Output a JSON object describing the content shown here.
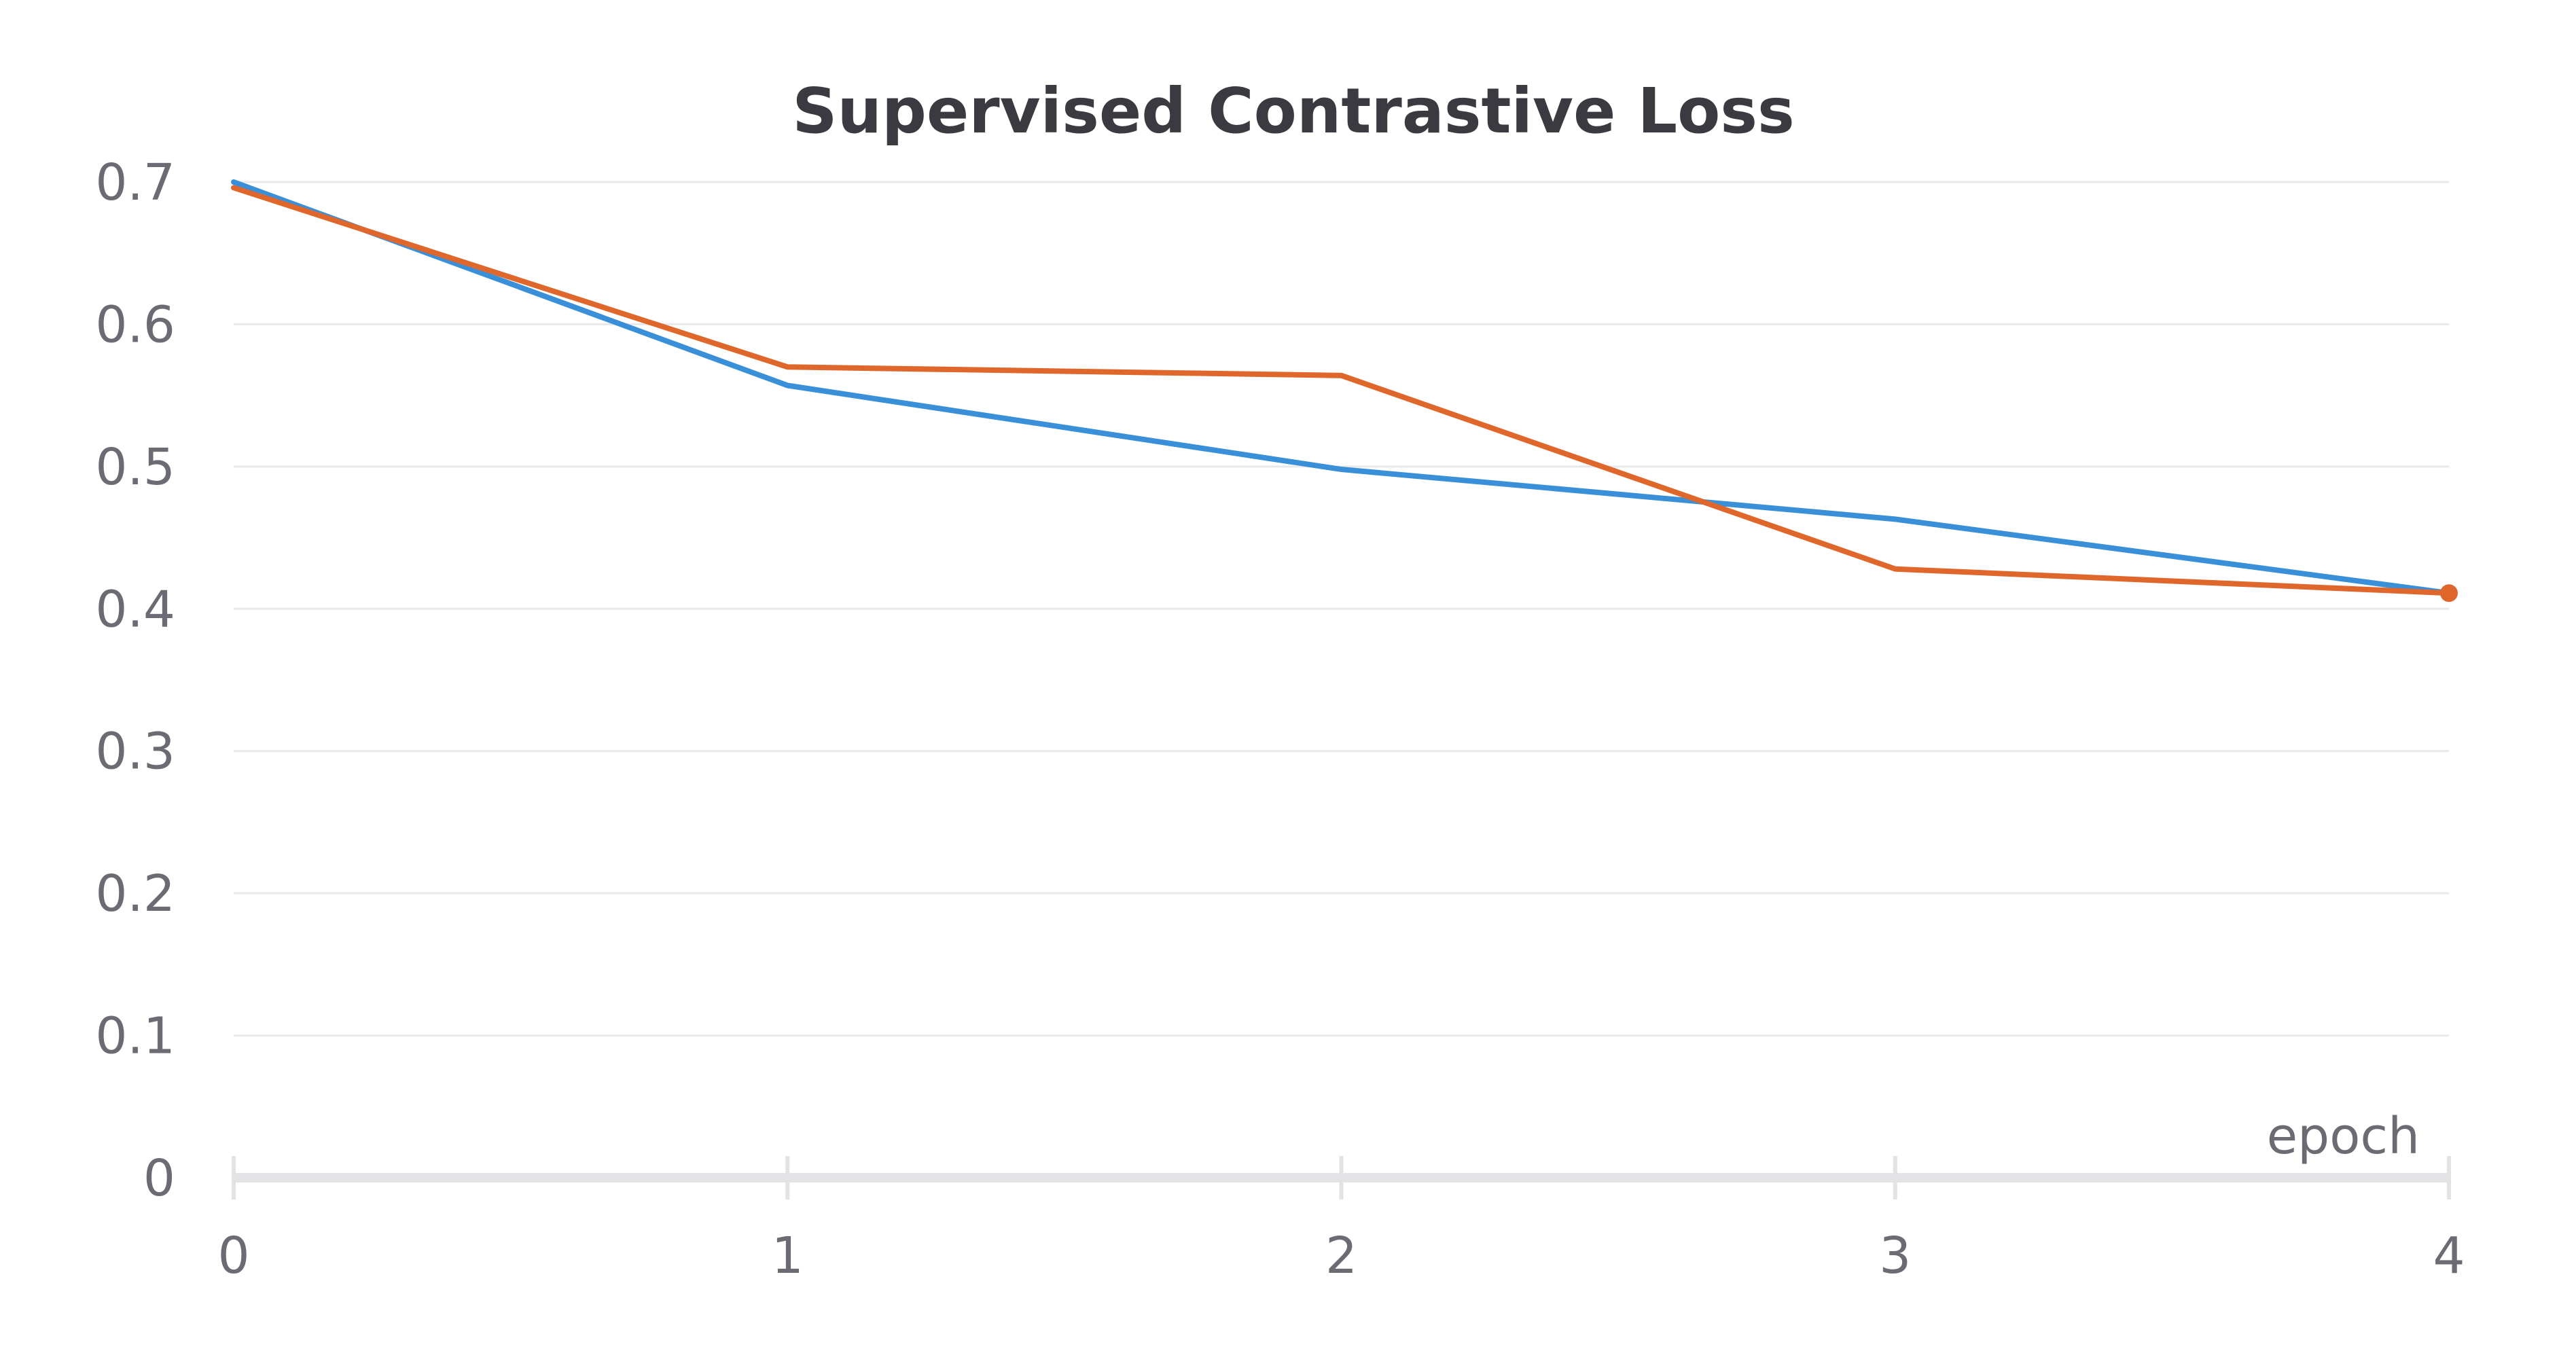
{
  "chart_data": {
    "type": "line",
    "title": "Supervised Contrastive Loss",
    "xlabel": "epoch",
    "ylabel": "",
    "x": [
      0,
      1,
      2,
      3,
      4
    ],
    "x_ticks": [
      "0",
      "1",
      "2",
      "3",
      "4"
    ],
    "xlim": [
      0,
      4
    ],
    "ylim": [
      0,
      0.7
    ],
    "y_ticks": [
      {
        "value": 0,
        "label": "0"
      },
      {
        "value": 0.1,
        "label": "0.1"
      },
      {
        "value": 0.2,
        "label": "0.2"
      },
      {
        "value": 0.3,
        "label": "0.3"
      },
      {
        "value": 0.4,
        "label": "0.4"
      },
      {
        "value": 0.5,
        "label": "0.5"
      },
      {
        "value": 0.6,
        "label": "0.6"
      },
      {
        "value": 0.7,
        "label": "0.7"
      }
    ],
    "grid": true,
    "series": [
      {
        "color": "#3a8fd9",
        "values": [
          0.7,
          0.557,
          0.498,
          0.463,
          0.411
        ],
        "end_marker": false
      },
      {
        "color": "#e0672b",
        "values": [
          0.696,
          0.57,
          0.564,
          0.428,
          0.411
        ],
        "end_marker": true
      }
    ]
  }
}
